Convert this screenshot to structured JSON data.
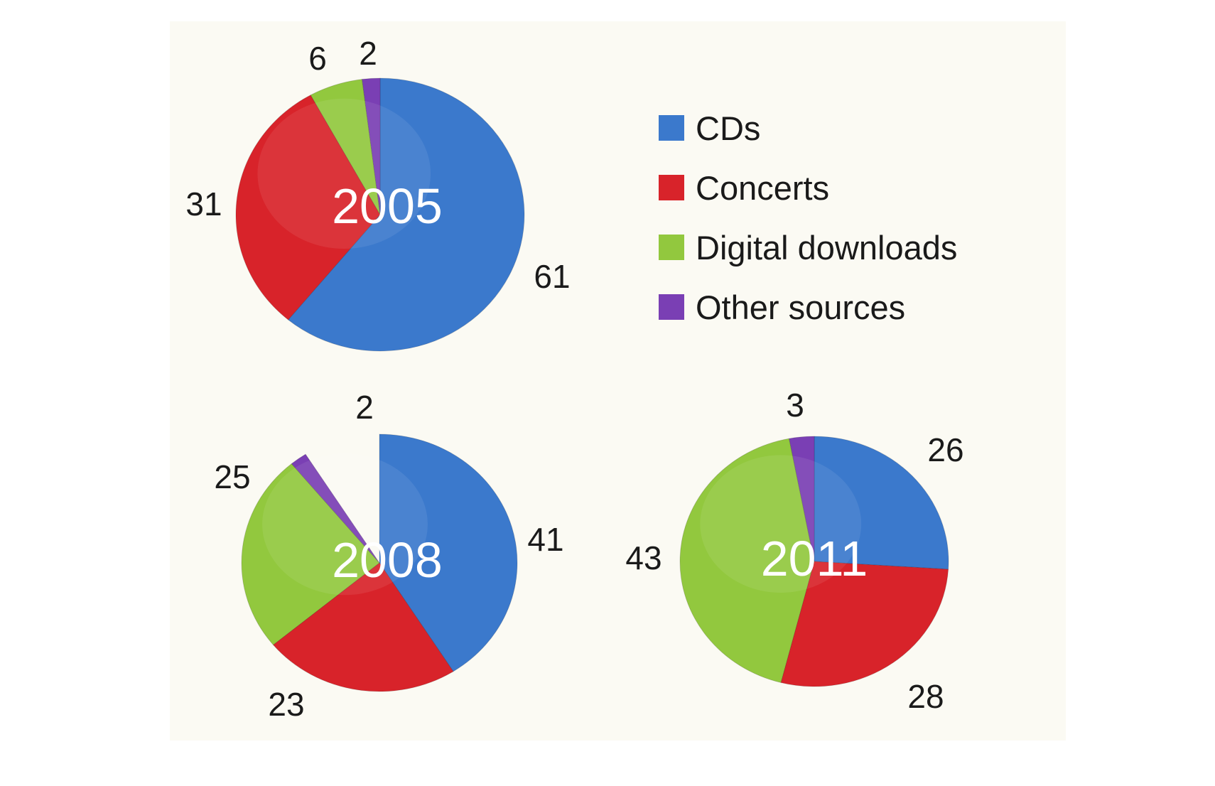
{
  "chart_data": {
    "type": "pie",
    "legend": {
      "placement": "top-right",
      "entries": [
        "CDs",
        "Concerts",
        "Digital downloads",
        "Other sources"
      ]
    },
    "colors": {
      "CDs": "#3b79cc",
      "Concerts": "#d8232a",
      "Digital downloads": "#92c83e",
      "Other sources": "#7a3fb4"
    },
    "charts": [
      {
        "title": "2005",
        "values": [
          61,
          31,
          6,
          2
        ],
        "labels": [
          "61",
          "31",
          "6",
          "2"
        ]
      },
      {
        "title": "2008",
        "values": [
          41,
          23,
          25,
          2
        ],
        "labels": [
          "41",
          "23",
          "25",
          "2"
        ]
      },
      {
        "title": "2011",
        "values": [
          26,
          28,
          43,
          3
        ],
        "labels": [
          "26",
          "28",
          "43",
          "3"
        ]
      }
    ]
  }
}
